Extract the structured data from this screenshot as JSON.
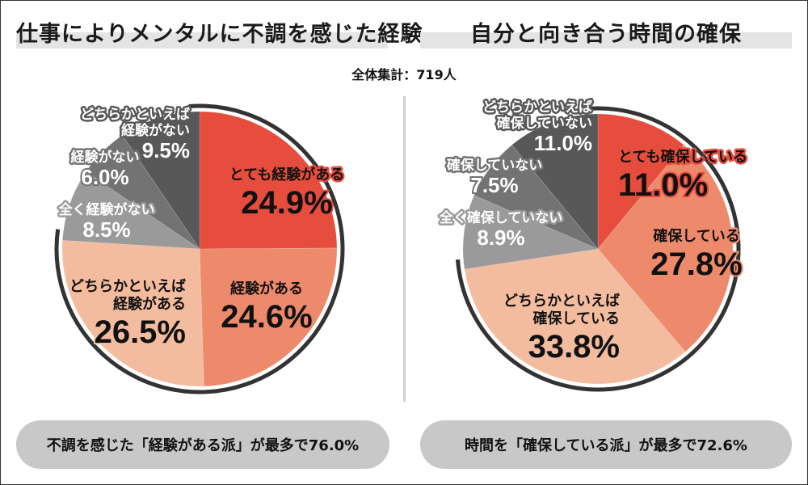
{
  "header": {
    "total_label": "全体集計：719人"
  },
  "colors": {
    "very": "#e64d3d",
    "yes": "#ee8a6c",
    "somewhat_yes": "#f4bc9f",
    "somewhat_no": "#585858",
    "no": "#737373",
    "not_at_all": "#9a9a9a",
    "outline_arc": "#333333",
    "title_band": "#e4e4e4",
    "summary_bg": "#c8c8c8"
  },
  "chart_data": [
    {
      "type": "pie",
      "title": "仕事によりメンタルに不調を感じた経験",
      "start": "12 o'clock, clockwise",
      "slices": [
        {
          "label": "とても経験がある",
          "lines": [
            "とても経験がある"
          ],
          "value": 24.9,
          "value_label": "24.9%",
          "color_key": "very"
        },
        {
          "label": "経験がある",
          "lines": [
            "経験がある"
          ],
          "value": 24.6,
          "value_label": "24.6%",
          "color_key": "yes"
        },
        {
          "label": "どちらかといえば経験がある",
          "lines": [
            "どちらかといえば",
            "経験がある"
          ],
          "value": 26.5,
          "value_label": "26.5%",
          "color_key": "somewhat_yes"
        },
        {
          "label": "全く経験がない",
          "lines": [
            "全く経験がない"
          ],
          "value": 8.5,
          "value_label": "8.5%",
          "color_key": "not_at_all"
        },
        {
          "label": "経験がない",
          "lines": [
            "経験がない"
          ],
          "value": 6.0,
          "value_label": "6.0%",
          "color_key": "no"
        },
        {
          "label": "どちらかといえば経験がない",
          "lines": [
            "どちらかといえば",
            "経験がない"
          ],
          "value": 9.5,
          "value_label": "9.5%",
          "color_key": "somewhat_no"
        }
      ],
      "highlight_group_total": 76.0,
      "summary": "不調を感じた「経験がある派」が最多で76.0%"
    },
    {
      "type": "pie",
      "title": "自分と向き合う時間の確保",
      "start": "12 o'clock, clockwise",
      "slices": [
        {
          "label": "とても確保している",
          "lines": [
            "とても確保している"
          ],
          "value": 11.0,
          "value_label": "11.0%",
          "color_key": "very"
        },
        {
          "label": "確保している",
          "lines": [
            "確保している"
          ],
          "value": 27.8,
          "value_label": "27.8%",
          "color_key": "yes"
        },
        {
          "label": "どちらかといえば確保している",
          "lines": [
            "どちらかといえば",
            "確保している"
          ],
          "value": 33.8,
          "value_label": "33.8%",
          "color_key": "somewhat_yes"
        },
        {
          "label": "全く確保していない",
          "lines": [
            "全く確保していない"
          ],
          "value": 8.9,
          "value_label": "8.9%",
          "color_key": "not_at_all"
        },
        {
          "label": "確保していない",
          "lines": [
            "確保していない"
          ],
          "value": 7.5,
          "value_label": "7.5%",
          "color_key": "no"
        },
        {
          "label": "どちらかといえば確保していない",
          "lines": [
            "どちらかといえば",
            "確保していない"
          ],
          "value": 11.0,
          "value_label": "11.0%",
          "color_key": "somewhat_no"
        }
      ],
      "highlight_group_total": 72.6,
      "summary": "時間を「確保している派」が最多で72.6%"
    }
  ]
}
